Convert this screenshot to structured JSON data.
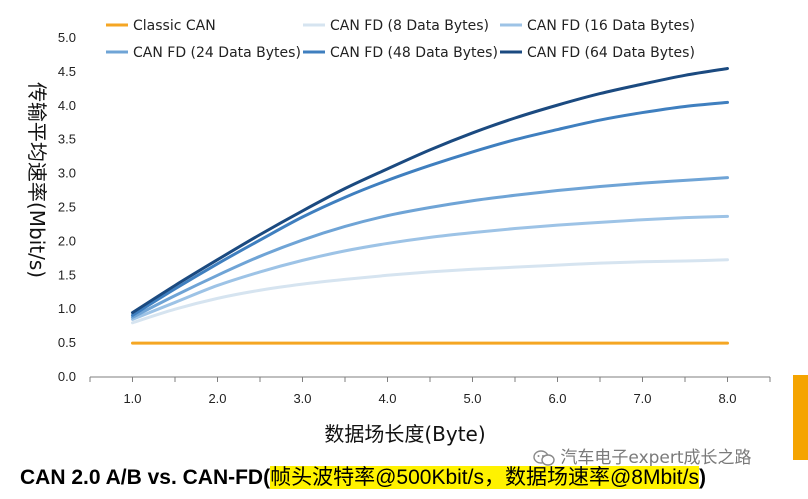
{
  "chart_data": {
    "type": "line",
    "xlabel": "数据场长度(Byte)",
    "ylabel": "传输平均速率(Mbit/s)",
    "xlim": [
      0.5,
      8.5
    ],
    "ylim": [
      0,
      5
    ],
    "x_ticks": [
      "1.0",
      "2.0",
      "3.0",
      "4.0",
      "5.0",
      "6.0",
      "7.0",
      "8.0"
    ],
    "y_ticks": [
      "0.0",
      "0.5",
      "1.0",
      "1.5",
      "2.0",
      "2.5",
      "3.0",
      "3.5",
      "4.0",
      "4.5",
      "5.0"
    ],
    "grid": false,
    "legend_position": "top",
    "x": [
      1,
      1.5,
      2,
      2.5,
      3,
      3.5,
      4,
      4.5,
      5,
      5.5,
      6,
      6.5,
      7,
      7.5,
      8
    ],
    "series": [
      {
        "name": "Classic CAN",
        "color": "#f5a623",
        "values": [
          0.5,
          0.5,
          0.5,
          0.5,
          0.5,
          0.5,
          0.5,
          0.5,
          0.5,
          0.5,
          0.5,
          0.5,
          0.5,
          0.5,
          0.5
        ]
      },
      {
        "name": "CAN FD (8 Data Bytes)",
        "color": "#d6e4f0",
        "values": [
          0.8,
          1.0,
          1.16,
          1.28,
          1.37,
          1.44,
          1.5,
          1.55,
          1.59,
          1.62,
          1.65,
          1.68,
          1.7,
          1.71,
          1.73
        ]
      },
      {
        "name": "CAN FD (16 Data Bytes)",
        "color": "#9dc3e6",
        "values": [
          0.85,
          1.1,
          1.35,
          1.55,
          1.72,
          1.86,
          1.97,
          2.06,
          2.13,
          2.19,
          2.24,
          2.28,
          2.32,
          2.35,
          2.37
        ]
      },
      {
        "name": "CAN FD (24 Data Bytes)",
        "color": "#6fa4d6",
        "values": [
          0.88,
          1.2,
          1.5,
          1.78,
          2.02,
          2.22,
          2.38,
          2.5,
          2.6,
          2.68,
          2.75,
          2.81,
          2.86,
          2.9,
          2.94
        ]
      },
      {
        "name": "CAN FD (48 Data Bytes)",
        "color": "#3f7fbf",
        "values": [
          0.91,
          1.3,
          1.67,
          2.02,
          2.36,
          2.65,
          2.9,
          3.12,
          3.32,
          3.5,
          3.65,
          3.79,
          3.9,
          3.99,
          4.05
        ]
      },
      {
        "name": "CAN FD (64 Data Bytes)",
        "color": "#1b4a80",
        "values": [
          0.95,
          1.35,
          1.73,
          2.1,
          2.45,
          2.78,
          3.07,
          3.35,
          3.6,
          3.82,
          4.01,
          4.18,
          4.32,
          4.45,
          4.55
        ]
      }
    ]
  },
  "caption": {
    "prefix": "CAN 2.0 A/B vs. CAN-FD",
    "open_paren": "(",
    "highlight": "帧头波特率@500Kbit/s，数据场速率@8Mbit/s",
    "close_paren": ")"
  },
  "watermark": {
    "text": "汽车电子expert成长之路"
  },
  "colors": {
    "side_bar": "#f5a400",
    "highlight": "#fff200"
  }
}
